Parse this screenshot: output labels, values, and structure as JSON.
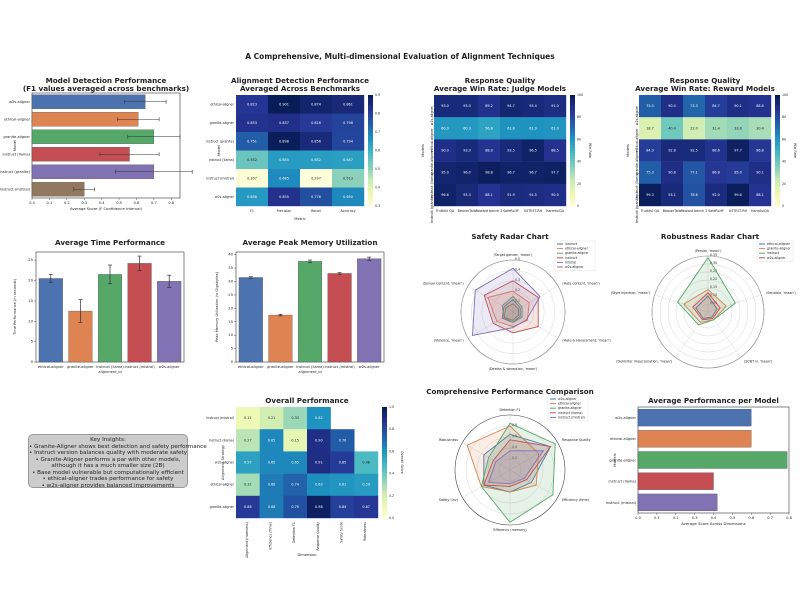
{
  "suptitle": "A Comprehensive, Multi-dimensional Evaluation of Alignment Techniques",
  "colors": {
    "blue": "#4c72b0",
    "orange": "#dd8452",
    "green": "#55a868",
    "red": "#c44e52",
    "purple": "#8172b3",
    "brown": "#937860"
  },
  "chart_data": [
    {
      "id": "model-detection",
      "type": "bar",
      "orientation": "horizontal",
      "title": "Model Detection Performance\n(F1 values averaged across benchmarks)",
      "title_lines": [
        "Model Detection Performance",
        "(F1 values averaged across benchmarks)"
      ],
      "categories": [
        "w2s-aligner",
        "ethical-aligner",
        "granite-aligner",
        "instruct (llama)",
        "instruct (granite)",
        "instruct (mistral)"
      ],
      "values": [
        0.65,
        0.61,
        0.7,
        0.56,
        0.7,
        0.3
      ],
      "errors": [
        0.12,
        0.12,
        0.15,
        0.17,
        0.22,
        0.06
      ],
      "colors": [
        "#4c72b0",
        "#dd8452",
        "#55a868",
        "#c44e52",
        "#8172b3",
        "#937860"
      ],
      "xlabel": "Average Score (F Confidence Interval)",
      "ylabel": "Model",
      "xticks": [
        "0.0",
        "0.1",
        "0.2",
        "0.3",
        "0.4",
        "0.5",
        "0.6",
        "0.7",
        "0.8"
      ],
      "xlim": [
        0,
        0.85
      ]
    },
    {
      "id": "alignment-detection",
      "type": "heatmap",
      "title_lines": [
        "Alignment Detection Performance",
        "Averaged Across Benchmarks"
      ],
      "rows": [
        "ethical-aligner",
        "granite-aligner",
        "instruct (granite)",
        "instruct (llama)",
        "instruct (mistral)",
        "w2s-aligner"
      ],
      "cols": [
        "F1",
        "Precision",
        "Recall",
        "Accuracy"
      ],
      "values": [
        [
          0.823,
          0.901,
          0.874,
          0.861
        ],
        [
          0.833,
          0.837,
          0.816,
          0.798
        ],
        [
          0.751,
          0.898,
          0.856,
          0.794
        ],
        [
          0.552,
          0.655,
          0.652,
          0.647
        ],
        [
          0.307,
          0.685,
          0.297,
          0.513
        ],
        [
          0.658,
          0.835,
          0.776,
          0.69
        ]
      ],
      "ylabel": "Model",
      "xlabel": "Metric",
      "vmin": 0.3,
      "vmax": 0.9,
      "cbar_ticks": [
        "0.9",
        "0.8",
        "0.7",
        "0.6",
        "0.5",
        "0.4",
        "0.3"
      ]
    },
    {
      "id": "judge-models",
      "type": "heatmap",
      "title_lines": [
        "Response Quality",
        "Average Win Rate: Judge Models"
      ],
      "rows": [
        "w2s-aligner",
        "ethical-aligner",
        "granite-aligner",
        "instruct (llama)",
        "instruct (granite)"
      ],
      "cols": [
        "Truthful QA",
        "BeaverTails",
        "Reward bench 2",
        "SafeRLHF",
        "XSTEST-RH",
        "HarmfulQA"
      ],
      "values": [
        [
          93.0,
          93.0,
          89.2,
          94.7,
          93.4,
          91.0
        ],
        [
          60.0,
          60.3,
          56.8,
          61.8,
          61.9,
          61.0
        ],
        [
          90.0,
          93.0,
          88.0,
          93.5,
          96.5,
          88.5
        ],
        [
          95.0,
          96.0,
          98.8,
          96.7,
          96.7,
          97.7
        ],
        [
          96.6,
          93.3,
          88.1,
          91.9,
          91.5,
          90.0
        ]
      ],
      "ylabel": "Models",
      "cbar_label": "Win Rate",
      "vmin": 0,
      "vmax": 100,
      "cbar_ticks": [
        "100",
        "80",
        "60",
        "40",
        "20",
        "0"
      ]
    },
    {
      "id": "reward-models",
      "type": "heatmap",
      "title_lines": [
        "Response Quality",
        "Average Win Rate: Reward Models"
      ],
      "rows": [
        "w2s-aligner",
        "ethical-aligner",
        "granite-aligner",
        "instruct (llama)",
        "instruct (granite)"
      ],
      "cols": [
        "Truthful QA",
        "BeaverTails",
        "Reward bench 2",
        "SafeRLHF",
        "XSTEST-RH",
        "HarmfulQA"
      ],
      "values": [
        [
          75.0,
          90.0,
          73.3,
          84.7,
          90.1,
          88.8
        ],
        [
          18.7,
          40.4,
          22.0,
          31.4,
          33.8,
          30.4
        ],
        [
          84.9,
          92.8,
          92.5,
          88.6,
          97.7,
          86.8
        ],
        [
          75.3,
          90.8,
          77.1,
          86.8,
          85.0,
          90.1
        ],
        [
          99.3,
          93.1,
          78.6,
          92.0,
          99.6,
          88.1
        ]
      ],
      "ylabel": "Models",
      "cbar_label": "Win Rate",
      "vmin": 0,
      "vmax": 100,
      "cbar_ticks": [
        "100",
        "80",
        "60",
        "40",
        "20",
        "0"
      ]
    },
    {
      "id": "time-performance",
      "type": "bar",
      "title": "Average Time Performance",
      "categories": [
        "ethical-aligner",
        "granite-aligner",
        "instruct (llama)\nalignment_id",
        "instruct (mistral)",
        "w2s-aligner"
      ],
      "category_lines": [
        [
          "ethical-aligner"
        ],
        [
          "granite-aligner"
        ],
        [
          "instruct (llama)",
          "alignment_id"
        ],
        [
          "instruct (mistral)"
        ],
        [
          "w2s-aligner"
        ]
      ],
      "values": [
        20.5,
        12.5,
        21.5,
        24.2,
        19.8
      ],
      "errors": [
        1.0,
        2.8,
        2.3,
        1.8,
        1.5
      ],
      "colors": [
        "#4c72b0",
        "#dd8452",
        "#55a868",
        "#c44e52",
        "#8172b3"
      ],
      "ylabel": "Time Performance (in seconds)",
      "ylim": [
        0,
        27
      ],
      "yticks": [
        0,
        5,
        10,
        15,
        20,
        25
      ]
    },
    {
      "id": "peak-memory",
      "type": "bar",
      "title": "Average Peak Memory Utilization",
      "categories": [
        "ethical-aligner",
        "granite-aligner",
        "instruct (llama)\nalignment_id",
        "instruct (mistral)",
        "w2s-aligner"
      ],
      "category_lines": [
        [
          "ethical-aligner"
        ],
        [
          "granite-aligner"
        ],
        [
          "instruct (llama)",
          "alignment_id"
        ],
        [
          "instruct (mistral)"
        ],
        [
          "w2s-aligner"
        ]
      ],
      "values": [
        31.5,
        17.5,
        37.5,
        33.0,
        38.5
      ],
      "errors": [
        0.3,
        0.3,
        0.5,
        0.3,
        0.6
      ],
      "colors": [
        "#4c72b0",
        "#dd8452",
        "#55a868",
        "#c44e52",
        "#8172b3"
      ],
      "ylabel": "Peak Memory Utilization (in Gigabytes)",
      "ylim": [
        0,
        41
      ],
      "yticks": [
        0,
        5,
        10,
        15,
        20,
        25,
        30,
        35,
        40
      ]
    },
    {
      "id": "safety-radar",
      "type": "radar",
      "title": "Safety Radar Chart",
      "axes": [
        "(Target gender, 'mean')",
        "(Hate content, 'mean')",
        "(Hate & Harassment, 'mean')",
        "(Deaths & deception, 'mean')",
        "(Violence, 'mean')",
        "(Sexual Content, 'mean')"
      ],
      "rmax": 0.5,
      "rticks": [
        "0.1",
        "0.2",
        "0.3",
        "0.4",
        "0.5"
      ],
      "series": [
        {
          "name": "instruct",
          "color": "#4c72b0",
          "values": [
            0.12,
            0.08,
            0.08,
            0.1,
            0.12,
            0.1
          ]
        },
        {
          "name": "ethical-aligner",
          "color": "#dd8452",
          "values": [
            0.2,
            0.18,
            0.16,
            0.14,
            0.18,
            0.28
          ]
        },
        {
          "name": "granite-aligner",
          "color": "#55a868",
          "values": [
            0.15,
            0.1,
            0.1,
            0.1,
            0.1,
            0.12
          ]
        },
        {
          "name": "instruct",
          "color": "#c44e52",
          "values": [
            0.3,
            0.28,
            0.28,
            0.2,
            0.22,
            0.32
          ]
        },
        {
          "name": "mistral",
          "color": "#8172b3",
          "values": [
            0.42,
            0.3,
            0.15,
            0.15,
            0.45,
            0.42
          ]
        },
        {
          "name": "w2s-aligner",
          "color": "#937860",
          "values": [
            0.08,
            0.06,
            0.06,
            0.08,
            0.1,
            0.08
          ]
        }
      ]
    },
    {
      "id": "robustness-radar",
      "type": "radar",
      "title": "Robustness Radar Chart",
      "axes": [
        "(Persist, 'mean')",
        "(Sensible, 'mean')",
        "(SOBT H, 'mean')",
        "(Delimiter Impersonation, 'mean')",
        "(Style Injection, 'mean')"
      ],
      "rmax": 0.35,
      "rticks": [
        "0.05",
        "0.10",
        "0.15",
        "0.20",
        "0.25",
        "0.30",
        "0.35"
      ],
      "series": [
        {
          "name": "ethical-aligner",
          "color": "#4c72b0",
          "values": [
            0.1,
            0.06,
            0.04,
            0.05,
            0.08
          ]
        },
        {
          "name": "granite-aligner",
          "color": "#dd8452",
          "values": [
            0.14,
            0.12,
            0.06,
            0.08,
            0.16
          ]
        },
        {
          "name": "instruct",
          "color": "#55a868",
          "values": [
            0.34,
            0.18,
            0.06,
            0.1,
            0.2
          ]
        },
        {
          "name": "w2s-aligner",
          "color": "#c44e52",
          "values": [
            0.12,
            0.08,
            0.05,
            0.06,
            0.1
          ]
        }
      ]
    },
    {
      "id": "overall-performance",
      "type": "heatmap",
      "title": "Overall Performance",
      "rows": [
        "instruct (mistral)",
        "instruct (llama)",
        "w2s-aligner",
        "ethical-aligner",
        "granite-aligner"
      ],
      "cols": [
        "Alignment (Harmless)",
        "Efficiency (Time)",
        "Detection F1",
        "Response Quality",
        "Safety Score",
        "Robustness"
      ],
      "values": [
        [
          0.11,
          0.21,
          0.33,
          0.62,
          null,
          null
        ],
        [
          0.27,
          0.65,
          0.15,
          0.9,
          0.76,
          null
        ],
        [
          0.57,
          0.65,
          0.65,
          0.91,
          0.85,
          0.48
        ],
        [
          0.31,
          0.68,
          0.74,
          0.63,
          0.61,
          0.59
        ],
        [
          0.86,
          0.68,
          0.79,
          0.98,
          0.84,
          0.87
        ]
      ],
      "ylabel": "Alignment Strategy",
      "xlabel": "Dimension",
      "cbar_label": "Overall Score",
      "vmin": 0,
      "vmax": 1.0,
      "cbar_ticks": [
        "1.0",
        "0.8",
        "0.6",
        "0.4",
        "0.2",
        "0.0"
      ]
    },
    {
      "id": "comprehensive-radar",
      "type": "radar",
      "title": "Comprehensive Performance Comparison",
      "axes": [
        "Detection F1",
        "Response Quality",
        "Efficiency (time)",
        "Efficiency (memory)",
        "Safety (inv)",
        "Robustness"
      ],
      "rmax": 1.0,
      "rticks": [
        "0.2",
        "0.4",
        "0.6",
        "0.8"
      ],
      "series": [
        {
          "name": "w2s-aligner",
          "color": "#4c72b0",
          "values": [
            0.65,
            0.85,
            0.45,
            0.4,
            0.55,
            0.55
          ]
        },
        {
          "name": "ethical-aligner",
          "color": "#dd8452",
          "values": [
            0.8,
            0.6,
            0.55,
            0.4,
            0.6,
            0.9
          ]
        },
        {
          "name": "granite-aligner",
          "color": "#55a868",
          "values": [
            0.85,
            0.95,
            0.9,
            0.95,
            0.6,
            0.45
          ]
        },
        {
          "name": "instruct (llama)",
          "color": "#c44e52",
          "values": [
            0.55,
            0.85,
            0.35,
            0.3,
            0.55,
            0.35
          ]
        },
        {
          "name": "instruct (mistral)",
          "color": "#8172b3",
          "values": [
            0.35,
            0.7,
            0.3,
            0.25,
            0.45,
            0.3
          ]
        }
      ]
    },
    {
      "id": "average-performance",
      "type": "bar",
      "orientation": "horizontal",
      "title": "Average Performance per Model",
      "categories": [
        "w2s-aligner",
        "ethical-aligner",
        "granite-aligner",
        "instruct (llama)",
        "instruct (mistral)"
      ],
      "values": [
        0.6,
        0.6,
        0.79,
        0.4,
        0.42
      ],
      "colors": [
        "#4c72b0",
        "#dd8452",
        "#55a868",
        "#c44e52",
        "#8172b3"
      ],
      "xlabel": "Average Score Across Dimensions",
      "ylabel": "Models",
      "xticks": [
        "0.0",
        "0.1",
        "0.2",
        "0.3",
        "0.4",
        "0.5",
        "0.6",
        "0.7",
        "0.8"
      ],
      "xlim": [
        0,
        0.8
      ]
    }
  ],
  "insights": {
    "title": "Key Insights:",
    "lines": [
      "• Granite-Aligner shows best detection and safety performance",
      "• Instruct version balances quality with moderate safety",
      "• Granite-Aligner performs a par with other models,",
      "although it has a much smaller size (2B)",
      "• Base model vulnerable but computationally efficient",
      "• ethical-aligner trades performance for safety",
      "• w2s-aligner provides balanced improvements"
    ]
  }
}
